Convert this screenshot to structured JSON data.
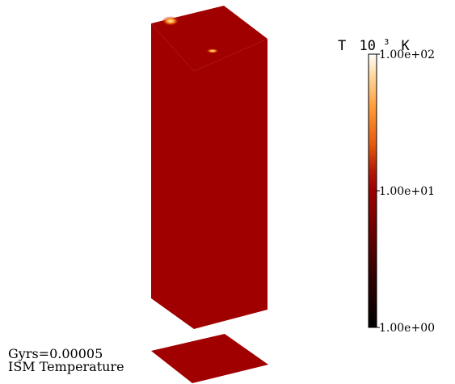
{
  "colorbar": {
    "title_prefix": "T",
    "title_base": "10",
    "title_exponent": "3",
    "title_unit": "K",
    "scale": "log",
    "ticks": [
      {
        "label": "1.00e+02",
        "value": 100
      },
      {
        "label": "1.00e+01",
        "value": 10
      },
      {
        "label": "1.00e+00",
        "value": 1
      }
    ],
    "range": [
      1,
      100
    ],
    "gradient": [
      {
        "value": 100,
        "color": "#ffffff"
      },
      {
        "value": 70,
        "color": "#ffd9a0"
      },
      {
        "value": 40,
        "color": "#ff9a35"
      },
      {
        "value": 22,
        "color": "#e65a10"
      },
      {
        "value": 14,
        "color": "#b51a06"
      },
      {
        "value": 10,
        "color": "#9c0000"
      },
      {
        "value": 5,
        "color": "#6a0000"
      },
      {
        "value": 2.2,
        "color": "#2e0000"
      },
      {
        "value": 1,
        "color": "#000000"
      }
    ]
  },
  "volume": {
    "color": "#a00000",
    "hotspot_color": "#ff8a1c",
    "hotspot_core_color": "#fff2c0"
  },
  "labels": {
    "time": "Gyrs=0.00005",
    "quantity": "ISM Temperature"
  }
}
